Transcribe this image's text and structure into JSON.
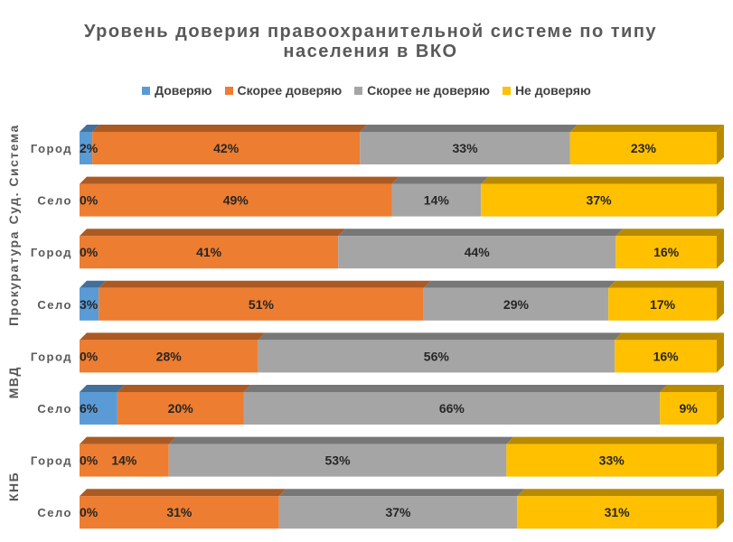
{
  "chart_data": {
    "type": "bar",
    "orientation": "horizontal",
    "stacked": "percent",
    "title": "Уровень доверия правоохранительной системе по типу населения в ВКО",
    "legend_position": "top",
    "grid": false,
    "groups": [
      {
        "name": "Суд. Система",
        "rows": [
          0,
          1
        ]
      },
      {
        "name": "Прокуратура",
        "rows": [
          2,
          3
        ]
      },
      {
        "name": "МВД",
        "rows": [
          4,
          5
        ]
      },
      {
        "name": "КНБ",
        "rows": [
          6,
          7
        ]
      }
    ],
    "categories": [
      "Город",
      "Село",
      "Город",
      "Село",
      "Город",
      "Село",
      "Город",
      "Село"
    ],
    "series": [
      {
        "name": "Доверяю",
        "color": "#5B9BD5",
        "values": [
          2,
          0,
          0,
          3,
          0,
          6,
          0,
          0
        ]
      },
      {
        "name": "Скорее доверяю",
        "color": "#ED7D31",
        "values": [
          42,
          49,
          41,
          51,
          28,
          20,
          14,
          31
        ]
      },
      {
        "name": "Скорее не доверяю",
        "color": "#A5A5A5",
        "values": [
          33,
          14,
          44,
          29,
          56,
          66,
          53,
          37
        ]
      },
      {
        "name": "Не доверяю",
        "color": "#FFC000",
        "values": [
          23,
          37,
          16,
          17,
          16,
          9,
          33,
          31
        ]
      }
    ],
    "value_suffix": "%"
  }
}
